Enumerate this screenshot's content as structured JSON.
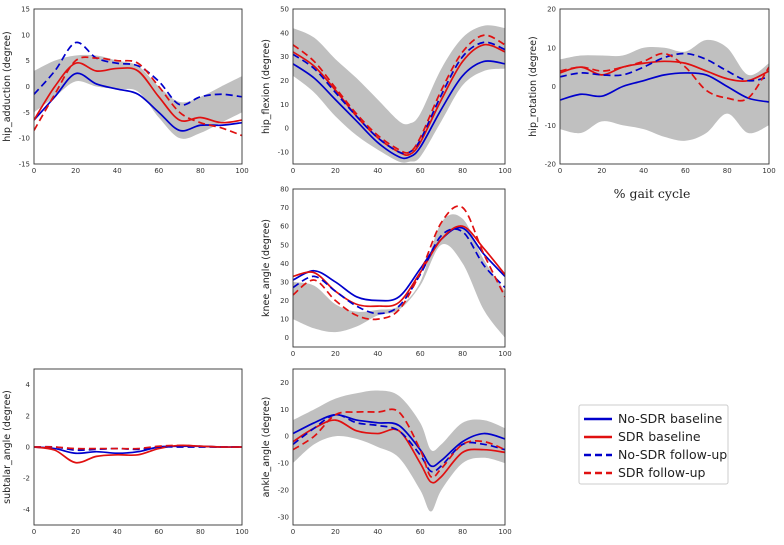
{
  "figure": {
    "xlabel_caption": "% gait cycle",
    "legend": [
      {
        "label": "No-SDR baseline",
        "color": "#0000cc",
        "dash": "solid"
      },
      {
        "label": "SDR baseline",
        "color": "#e01010",
        "dash": "solid"
      },
      {
        "label": "No-SDR follow-up",
        "color": "#0000cc",
        "dash": "dashed"
      },
      {
        "label": "SDR follow-up",
        "color": "#e01010",
        "dash": "dashed"
      }
    ],
    "band_color": "#c0c0c0"
  },
  "chart_data": [
    {
      "type": "line",
      "ylabel": "hip_adduction (degree)",
      "xlim": [
        0,
        100
      ],
      "ylim": [
        -15,
        15
      ],
      "xticks": [
        0,
        20,
        40,
        60,
        80,
        100
      ],
      "yticks": [
        -15,
        -10,
        -5,
        0,
        5,
        10,
        15
      ],
      "x": [
        0,
        10,
        20,
        30,
        40,
        50,
        60,
        70,
        80,
        90,
        100
      ],
      "band": {
        "lower": [
          -5,
          -2,
          1,
          0,
          -0.5,
          -1,
          -6,
          -10,
          -9,
          -7,
          -5
        ],
        "upper": [
          3,
          5,
          6,
          6,
          5,
          4,
          0,
          -3,
          -2,
          0,
          2
        ]
      },
      "series": [
        {
          "name": "No-SDR baseline",
          "values": [
            -6.5,
            -2,
            2.5,
            0.5,
            -0.5,
            -1.5,
            -5,
            -8.5,
            -7.5,
            -7.5,
            -7
          ]
        },
        {
          "name": "SDR baseline",
          "values": [
            -6.5,
            0,
            4.5,
            3,
            3.5,
            3,
            -2,
            -6.5,
            -6,
            -7,
            -6.5
          ]
        },
        {
          "name": "No-SDR follow-up",
          "values": [
            -1.5,
            3,
            8.5,
            5.5,
            4.5,
            4,
            1,
            -3.5,
            -2,
            -1.5,
            -2
          ]
        },
        {
          "name": "SDR follow-up",
          "values": [
            -8.5,
            -1.5,
            5,
            5.5,
            5,
            4.5,
            0,
            -5,
            -7,
            -8,
            -9.5
          ]
        }
      ]
    },
    {
      "type": "line",
      "ylabel": "hip_flexion (degree)",
      "xlim": [
        0,
        100
      ],
      "ylim": [
        -15,
        50
      ],
      "xticks": [
        0,
        20,
        40,
        60,
        80,
        100
      ],
      "yticks": [
        -10,
        0,
        10,
        20,
        30,
        40,
        50
      ],
      "x": [
        0,
        10,
        20,
        30,
        40,
        50,
        55,
        60,
        70,
        80,
        90,
        100
      ],
      "band": {
        "lower": [
          22,
          15,
          5,
          -3,
          -9,
          -14,
          -14,
          -12,
          3,
          18,
          24,
          25
        ],
        "upper": [
          42,
          38,
          29,
          21,
          12,
          3,
          2,
          6,
          25,
          38,
          43,
          42
        ]
      },
      "series": [
        {
          "name": "No-SDR baseline",
          "values": [
            27,
            21,
            12,
            3,
            -6,
            -12,
            -12,
            -8,
            8,
            22,
            28,
            27
          ]
        },
        {
          "name": "SDR baseline",
          "values": [
            32,
            26,
            16,
            5,
            -4,
            -10,
            -11,
            -6,
            12,
            28,
            35,
            32
          ]
        },
        {
          "name": "No-SDR follow-up",
          "values": [
            31,
            25,
            15,
            5,
            -4,
            -10,
            -10,
            -5,
            14,
            30,
            36,
            33
          ]
        },
        {
          "name": "SDR follow-up",
          "values": [
            35,
            28,
            17,
            6,
            -3,
            -9,
            -10,
            -4,
            16,
            32,
            39,
            35
          ]
        }
      ]
    },
    {
      "type": "line",
      "ylabel": "hip_rotation (degree)",
      "xlim": [
        0,
        100
      ],
      "ylim": [
        -20,
        20
      ],
      "xticks": [
        0,
        20,
        40,
        60,
        80,
        100
      ],
      "yticks": [
        -20,
        -10,
        0,
        10,
        20
      ],
      "x": [
        0,
        10,
        20,
        30,
        40,
        50,
        60,
        70,
        80,
        90,
        100
      ],
      "band": {
        "lower": [
          -11,
          -12,
          -9,
          -10,
          -11,
          -13,
          -14,
          -12,
          -7,
          -12,
          -10
        ],
        "upper": [
          7,
          8,
          8,
          8,
          10,
          10,
          9,
          12,
          10,
          3,
          6
        ]
      },
      "series": [
        {
          "name": "No-SDR baseline",
          "values": [
            -3.5,
            -2,
            -2.5,
            0,
            1.5,
            3,
            3.5,
            3,
            0,
            -3,
            -4
          ]
        },
        {
          "name": "SDR baseline",
          "values": [
            3.5,
            5,
            3,
            5,
            6,
            6.5,
            6,
            4,
            2,
            1.5,
            4
          ]
        },
        {
          "name": "No-SDR follow-up",
          "values": [
            2.5,
            3.5,
            3,
            3,
            5,
            7.5,
            8.5,
            7,
            4,
            1.5,
            2.5
          ]
        },
        {
          "name": "SDR follow-up",
          "values": [
            4,
            5,
            4,
            5,
            6.5,
            8.5,
            5,
            -1,
            -3,
            -3,
            5
          ]
        }
      ]
    },
    {
      "type": "line",
      "ylabel": "knee_angle (degree)",
      "xlim": [
        0,
        100
      ],
      "ylim": [
        -5,
        80
      ],
      "xticks": [
        0,
        20,
        40,
        60,
        80,
        100
      ],
      "yticks": [
        0,
        10,
        20,
        30,
        40,
        50,
        60,
        70,
        80
      ],
      "x": [
        0,
        10,
        20,
        30,
        40,
        50,
        60,
        70,
        80,
        90,
        100
      ],
      "band": {
        "lower": [
          10,
          5,
          3,
          6,
          12,
          15,
          28,
          50,
          40,
          15,
          0
        ],
        "upper": [
          30,
          28,
          18,
          14,
          15,
          17,
          30,
          62,
          64,
          42,
          25
        ]
      },
      "series": [
        {
          "name": "No-SDR baseline",
          "values": [
            31,
            36,
            30,
            22,
            20,
            22,
            37,
            53,
            59,
            45,
            33
          ]
        },
        {
          "name": "SDR baseline",
          "values": [
            33,
            35,
            25,
            18,
            17,
            19,
            35,
            53,
            60,
            48,
            34
          ]
        },
        {
          "name": "No-SDR follow-up",
          "values": [
            27,
            33,
            25,
            17,
            13,
            17,
            34,
            55,
            57,
            39,
            27
          ]
        },
        {
          "name": "SDR follow-up",
          "values": [
            23,
            31,
            20,
            12,
            10,
            15,
            35,
            62,
            70,
            45,
            22
          ]
        }
      ]
    },
    {
      "type": "line",
      "ylabel": "subtalar_angle (degree)",
      "xlim": [
        0,
        100
      ],
      "ylim": [
        -5,
        5
      ],
      "xticks": [
        0,
        20,
        40,
        60,
        80,
        100
      ],
      "yticks": [
        -4,
        -2,
        0,
        2,
        4
      ],
      "x": [
        0,
        10,
        20,
        30,
        40,
        50,
        60,
        70,
        80,
        90,
        100
      ],
      "series": [
        {
          "name": "No-SDR baseline",
          "values": [
            0,
            -0.1,
            -0.4,
            -0.3,
            -0.4,
            -0.3,
            0,
            0.05,
            0.05,
            0,
            0
          ]
        },
        {
          "name": "SDR baseline",
          "values": [
            0,
            -0.2,
            -1.0,
            -0.6,
            -0.5,
            -0.5,
            -0.1,
            0.1,
            0.05,
            0,
            0
          ]
        },
        {
          "name": "No-SDR follow-up",
          "values": [
            0,
            0,
            -0.2,
            -0.15,
            -0.1,
            -0.15,
            0,
            0,
            0,
            0,
            0
          ]
        },
        {
          "name": "SDR follow-up",
          "values": [
            0,
            0,
            -0.1,
            -0.1,
            -0.1,
            -0.1,
            0.05,
            0.1,
            0.05,
            0,
            0
          ]
        }
      ]
    },
    {
      "type": "line",
      "ylabel": "ankle_angle (degree)",
      "xlim": [
        0,
        100
      ],
      "ylim": [
        -33,
        25
      ],
      "xticks": [
        0,
        20,
        40,
        60,
        80,
        100
      ],
      "yticks": [
        -30,
        -20,
        -10,
        0,
        10,
        20
      ],
      "x": [
        0,
        10,
        20,
        30,
        40,
        50,
        60,
        65,
        70,
        80,
        90,
        100
      ],
      "band": {
        "lower": [
          -10,
          -3,
          0,
          -1,
          -4,
          -8,
          -20,
          -28,
          -20,
          -10,
          -8,
          -10
        ],
        "upper": [
          6,
          10,
          14,
          16,
          17,
          15,
          5,
          -5,
          -3,
          5,
          6,
          3
        ]
      },
      "series": [
        {
          "name": "No-SDR baseline",
          "values": [
            1,
            5,
            8,
            6,
            5,
            4,
            -5,
            -11,
            -9,
            -2,
            1,
            -1
          ]
        },
        {
          "name": "SDR baseline",
          "values": [
            -2,
            3,
            6,
            2,
            1,
            2,
            -10,
            -17,
            -15,
            -6,
            -5,
            -6
          ]
        },
        {
          "name": "No-SDR follow-up",
          "values": [
            -3,
            3,
            8,
            5,
            4,
            2,
            -7,
            -13,
            -11,
            -3,
            -3,
            -5
          ]
        },
        {
          "name": "SDR follow-up",
          "values": [
            -5,
            0,
            8,
            9,
            9,
            9,
            -5,
            -15,
            -12,
            -3,
            -2,
            -5
          ]
        }
      ]
    }
  ]
}
